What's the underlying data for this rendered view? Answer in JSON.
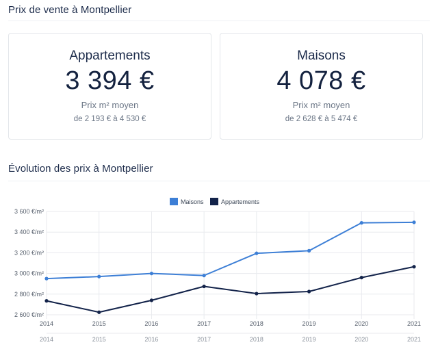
{
  "header": {
    "title": "Prix de vente à Montpellier"
  },
  "cards": [
    {
      "label": "Appartements",
      "price": "3 394 €",
      "sub": "Prix m² moyen",
      "range": "de 2 193 € à 4 530 €"
    },
    {
      "label": "Maisons",
      "price": "4 078 €",
      "sub": "Prix m² moyen",
      "range": "de 2 628 € à 5 474 €"
    }
  ],
  "evolution": {
    "title": "Évolution des prix à Montpellier"
  },
  "chart_data": {
    "type": "line",
    "x": [
      "2014",
      "2015",
      "2016",
      "2017",
      "2018",
      "2019",
      "2020",
      "2021"
    ],
    "series": [
      {
        "name": "Maisons",
        "color": "#3d7fd6",
        "values": [
          2950,
          2970,
          3000,
          2980,
          3195,
          3220,
          3490,
          3495
        ]
      },
      {
        "name": "Appartements",
        "color": "#13234a",
        "values": [
          2735,
          2625,
          2740,
          2875,
          2805,
          2825,
          2960,
          3065
        ]
      }
    ],
    "ylim": [
      2600,
      3600
    ],
    "yticks": [
      "2 600 €/m²",
      "2 800 €/m²",
      "3 000 €/m²",
      "3 200 €/m²",
      "3 400 €/m²",
      "3 600 €/m²"
    ],
    "ytick_values": [
      2600,
      2800,
      3000,
      3200,
      3400,
      3600
    ],
    "grid": true,
    "legend": "top-center"
  }
}
